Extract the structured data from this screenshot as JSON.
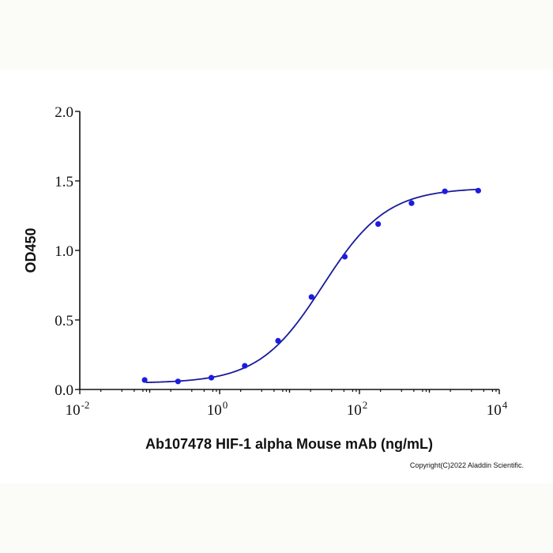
{
  "chart_data": {
    "type": "scatter",
    "title": "",
    "xlabel": "Ab107478 HIF-1 alpha Mouse mAb (ng/mL)",
    "ylabel": "OD450",
    "xscale": "log",
    "xlim": [
      0.01,
      10000
    ],
    "ylim": [
      0,
      2.0
    ],
    "x_ticks": [
      {
        "base": "10",
        "exp": "-2",
        "value": 0.01
      },
      {
        "base": "10",
        "exp": "0",
        "value": 1
      },
      {
        "base": "10",
        "exp": "2",
        "value": 100
      },
      {
        "base": "10",
        "exp": "4",
        "value": 10000
      }
    ],
    "y_ticks": [
      "0.0",
      "0.5",
      "1.0",
      "1.5",
      "2.0"
    ],
    "grid": false,
    "legend": null,
    "series": [
      {
        "name": "Ab107478",
        "marker_color": "#1c1ce0",
        "line_color": "#1a1a9c",
        "fit": "4PL sigmoidal",
        "x": [
          0.0847,
          0.254,
          0.762,
          2.29,
          6.86,
          20.6,
          61.7,
          185,
          556,
          1667,
          5000
        ],
        "y": [
          0.068,
          0.058,
          0.085,
          0.17,
          0.35,
          0.665,
          0.955,
          1.19,
          1.34,
          1.425,
          1.43
        ]
      }
    ],
    "fit_curve": {
      "bottom": 0.045,
      "top": 1.45,
      "ec50": 30,
      "hill": 0.95
    }
  },
  "annotations": {
    "copyright": "Copyright(C)2022 Aladdin Scientific."
  }
}
